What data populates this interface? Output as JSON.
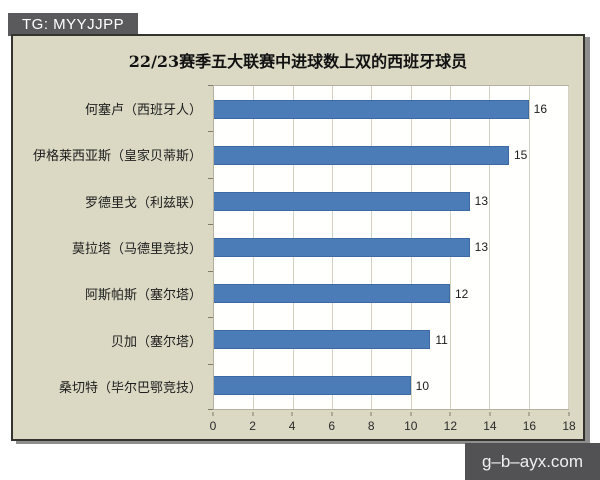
{
  "tg_badge": {
    "text": "TG: MYYJJPP",
    "bg": "#5a5a5c",
    "fg": "#ffffff"
  },
  "watermark": {
    "text": "g–b–ayx.com",
    "bg": "#525254",
    "fg": "#f0f0f0"
  },
  "chart_data": {
    "type": "bar",
    "orientation": "horizontal",
    "title": "22/23赛季五大联赛中进球数上双的西班牙球员",
    "categories": [
      "何塞卢（西班牙人）",
      "伊格莱西亚斯（皇家贝蒂斯）",
      "罗德里戈（利兹联）",
      "莫拉塔（马德里竞技）",
      "阿斯帕斯（塞尔塔）",
      "贝加（塞尔塔）",
      "桑切特（毕尔巴鄂竞技）"
    ],
    "values": [
      16,
      15,
      13,
      13,
      12,
      11,
      10
    ],
    "xlabel": "",
    "ylabel": "",
    "xlim": [
      0,
      18
    ],
    "x_ticks": [
      0,
      2,
      4,
      6,
      8,
      10,
      12,
      14,
      16,
      18
    ],
    "grid": true,
    "legend": false,
    "data_labels": true,
    "colors": {
      "bar": "#4b7cb8",
      "bar_border": "#3d6aa2",
      "chart_bg": "#dbd8c3",
      "plot_bg": "#fffffe",
      "frame_border": "#35332e",
      "gridline": "#d4d1c2"
    }
  }
}
